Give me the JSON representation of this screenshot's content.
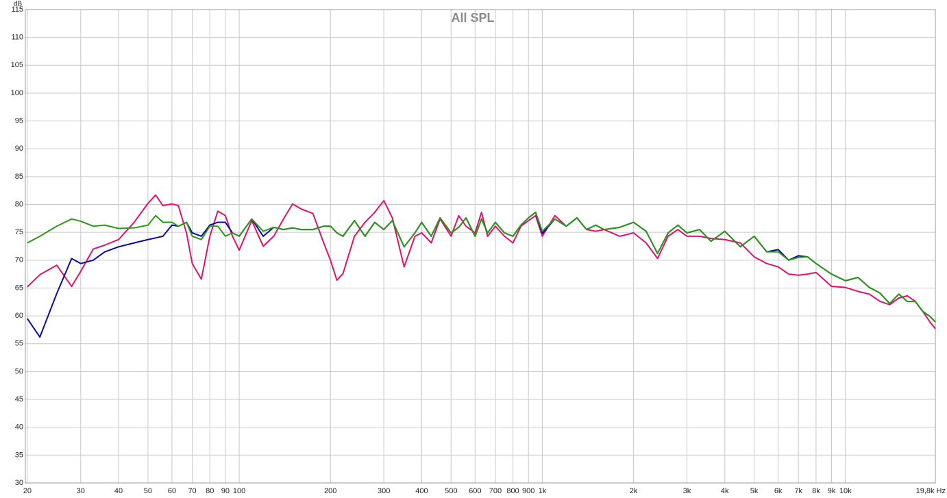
{
  "chart_data": {
    "type": "line",
    "title": "All SPL",
    "y_label": "dB",
    "x_scale": "log",
    "grid": true,
    "x": [
      20,
      22,
      25,
      28,
      30,
      33,
      36,
      40,
      45,
      50,
      53,
      56,
      60,
      63,
      67,
      70,
      75,
      80,
      85,
      90,
      95,
      100,
      110,
      120,
      130,
      140,
      150,
      160,
      175,
      190,
      200,
      210,
      220,
      240,
      260,
      280,
      300,
      320,
      350,
      380,
      400,
      430,
      460,
      500,
      530,
      560,
      600,
      630,
      660,
      700,
      750,
      800,
      850,
      900,
      950,
      1000,
      1100,
      1200,
      1300,
      1400,
      1500,
      1600,
      1800,
      2000,
      2200,
      2400,
      2600,
      2800,
      3000,
      3300,
      3600,
      4000,
      4500,
      5000,
      5500,
      6000,
      6500,
      7000,
      7500,
      8000,
      9000,
      10000,
      11000,
      12000,
      13000,
      14000,
      15000,
      16000,
      17000,
      18000,
      19000,
      19800
    ],
    "series": [
      {
        "color": "#e0106e",
        "values": [
          65.2,
          67.4,
          69.1,
          65.3,
          68,
          72,
          72.7,
          73.7,
          76.8,
          80.2,
          81.7,
          79.8,
          80.1,
          79.8,
          74.9,
          69.4,
          66.6,
          74.3,
          78.8,
          78,
          74.3,
          71.8,
          77.1,
          72.5,
          74.3,
          77.4,
          80.1,
          79.2,
          78.4,
          73.1,
          70,
          66.4,
          67.6,
          74.3,
          76.8,
          78.6,
          80.7,
          77.6,
          68.8,
          74.3,
          74.9,
          73.1,
          77.4,
          74.3,
          78,
          76.1,
          74.9,
          78.6,
          74.3,
          76.1,
          74.3,
          73.1,
          76.1,
          77.1,
          78,
          74.3,
          78,
          76.1,
          77.6,
          75.5,
          75.2,
          75.5,
          74.3,
          74.9,
          73.1,
          70.3,
          74.3,
          75.5,
          74.3,
          74.3,
          73.9,
          73.7,
          73.1,
          70.6,
          69.4,
          68.8,
          67.5,
          67.3,
          67.5,
          67.8,
          65.3,
          65.1,
          64.4,
          63.9,
          62.6,
          62,
          63.2,
          63.6,
          62.6,
          60.8,
          58.9,
          57.7
        ]
      },
      {
        "color": "#0a0aa0",
        "values": [
          59.5,
          56.2,
          64,
          70.3,
          69.4,
          70,
          71.5,
          72.4,
          73.1,
          73.7,
          74,
          74.3,
          76.3,
          76.1,
          76.8,
          74.9,
          74.3,
          76.3,
          76.8,
          76.8,
          74.9,
          74.3,
          77.4,
          74.3,
          75.9,
          75.5,
          75.8,
          75.5,
          75.5,
          76.1,
          76.1,
          74.9,
          74.3,
          77.1,
          74.3,
          76.8,
          75.5,
          77.1,
          72.4,
          74.9,
          76.8,
          74.3,
          77.6,
          74.9,
          75.9,
          77.6,
          74.3,
          77.4,
          74.9,
          76.8,
          74.9,
          74.3,
          76.3,
          77.6,
          78.6,
          74.8,
          77.4,
          76.1,
          77.6,
          75.5,
          76.3,
          75.5,
          75.9,
          76.8,
          75.2,
          71.2,
          74.9,
          76.3,
          74.9,
          75.5,
          73.4,
          75.2,
          72.4,
          74.3,
          71.5,
          71.9,
          70,
          70.8,
          70.6,
          69.4,
          67.5,
          66.3,
          66.9,
          65.1,
          64.1,
          62.2,
          63.9,
          62.6,
          62.6,
          60.8,
          59.9,
          58.9
        ]
      },
      {
        "color": "#2a9a10",
        "values": [
          73.1,
          74.3,
          76.1,
          77.4,
          77,
          76.1,
          76.3,
          75.7,
          75.8,
          76.3,
          78,
          76.8,
          76.8,
          76.1,
          76.8,
          74.3,
          73.7,
          76.1,
          76.1,
          74.3,
          74.9,
          74.3,
          77.4,
          75.2,
          75.9,
          75.5,
          75.8,
          75.5,
          75.5,
          76.1,
          76.1,
          74.9,
          74.3,
          77.1,
          74.3,
          76.8,
          75.5,
          77.1,
          72.4,
          74.9,
          76.8,
          74.3,
          77.6,
          74.9,
          75.9,
          77.6,
          74.3,
          77.4,
          74.9,
          76.8,
          74.9,
          74.3,
          76.3,
          77.6,
          78.6,
          75.2,
          77.4,
          76.1,
          77.6,
          75.5,
          76.3,
          75.5,
          75.9,
          76.8,
          75.2,
          71.2,
          74.9,
          76.3,
          74.9,
          75.5,
          73.4,
          75.2,
          72.4,
          74.3,
          71.5,
          71.5,
          70,
          70.5,
          70.6,
          69.4,
          67.5,
          66.3,
          66.9,
          65.1,
          64.1,
          62.2,
          63.9,
          62.6,
          62.6,
          60.8,
          59.9,
          58.9
        ]
      }
    ],
    "xlim": [
      19.7,
      19800
    ],
    "xticks": [
      20,
      30,
      40,
      50,
      60,
      70,
      80,
      90,
      100,
      200,
      300,
      400,
      500,
      600,
      700,
      800,
      900,
      {
        "value": 1000,
        "label": "1k"
      },
      {
        "value": 2000,
        "label": "2k"
      },
      {
        "value": 3000,
        "label": "3k"
      },
      {
        "value": 4000,
        "label": "4k"
      },
      {
        "value": 5000,
        "label": "5k"
      },
      {
        "value": 6000,
        "label": "6k"
      },
      {
        "value": 7000,
        "label": "7k"
      },
      {
        "value": 8000,
        "label": "8k"
      },
      {
        "value": 9000,
        "label": "9k"
      },
      {
        "value": 10000,
        "label": "10k"
      },
      {
        "value": 19800,
        "label": "19,8k Hz"
      }
    ],
    "ylim": [
      30,
      115
    ],
    "yticks": [
      30,
      35,
      40,
      45,
      50,
      55,
      60,
      65,
      70,
      75,
      80,
      85,
      90,
      95,
      100,
      105,
      110,
      115
    ]
  }
}
